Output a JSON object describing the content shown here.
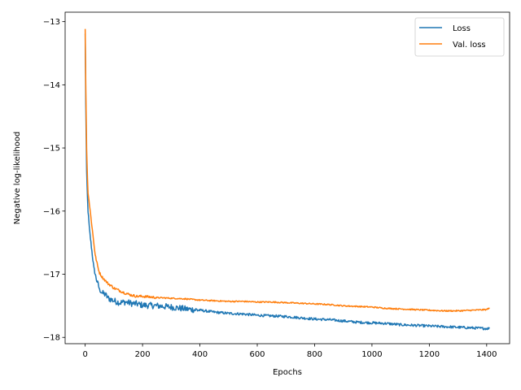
{
  "chart_data": {
    "type": "line",
    "title": "",
    "xlabel": "Epochs",
    "ylabel": "Negative log-likelihood",
    "xlim": [
      -70,
      1480
    ],
    "ylim": [
      -18.1,
      -12.85
    ],
    "xticks": [
      0,
      200,
      400,
      600,
      800,
      1000,
      1200,
      1400
    ],
    "xtick_labels": [
      "0",
      "200",
      "400",
      "600",
      "800",
      "1000",
      "1200",
      "1400"
    ],
    "yticks": [
      -13,
      -14,
      -15,
      -16,
      -17,
      -18
    ],
    "ytick_labels": [
      "−13",
      "−14",
      "−15",
      "−16",
      "−17",
      "−18"
    ],
    "grid": false,
    "legend_position": "top-right",
    "series": [
      {
        "name": "Loss",
        "color": "#1f77b4",
        "x": [
          0,
          2,
          5,
          8,
          10,
          15,
          20,
          25,
          30,
          35,
          40,
          45,
          50,
          60,
          70,
          80,
          90,
          100,
          120,
          140,
          160,
          180,
          200,
          250,
          300,
          350,
          400,
          450,
          500,
          550,
          600,
          650,
          700,
          750,
          800,
          850,
          900,
          950,
          1000,
          1050,
          1100,
          1150,
          1200,
          1250,
          1300,
          1350,
          1400,
          1410
        ],
        "y": [
          -13.2,
          -14.3,
          -15.4,
          -15.8,
          -16.0,
          -16.3,
          -16.5,
          -16.7,
          -16.9,
          -17.0,
          -17.1,
          -17.15,
          -17.25,
          -17.3,
          -17.32,
          -17.38,
          -17.4,
          -17.42,
          -17.45,
          -17.44,
          -17.46,
          -17.47,
          -17.49,
          -17.5,
          -17.52,
          -17.55,
          -17.57,
          -17.6,
          -17.62,
          -17.63,
          -17.65,
          -17.66,
          -17.67,
          -17.69,
          -17.71,
          -17.72,
          -17.74,
          -17.76,
          -17.77,
          -17.78,
          -17.8,
          -17.81,
          -17.82,
          -17.83,
          -17.84,
          -17.85,
          -17.86,
          -17.86
        ]
      },
      {
        "name": "Val. loss",
        "color": "#ff7f0e",
        "x": [
          0,
          2,
          5,
          8,
          10,
          15,
          20,
          25,
          30,
          35,
          40,
          45,
          50,
          60,
          70,
          80,
          90,
          100,
          120,
          140,
          160,
          180,
          200,
          250,
          300,
          350,
          400,
          450,
          500,
          550,
          600,
          650,
          700,
          750,
          800,
          850,
          900,
          950,
          1000,
          1050,
          1100,
          1150,
          1200,
          1250,
          1300,
          1350,
          1400,
          1410
        ],
        "y": [
          -13.1,
          -14.0,
          -15.0,
          -15.5,
          -15.7,
          -15.9,
          -16.1,
          -16.3,
          -16.5,
          -16.7,
          -16.8,
          -16.9,
          -16.98,
          -17.05,
          -17.1,
          -17.15,
          -17.18,
          -17.22,
          -17.26,
          -17.3,
          -17.33,
          -17.35,
          -17.35,
          -17.37,
          -17.38,
          -17.39,
          -17.41,
          -17.42,
          -17.43,
          -17.43,
          -17.44,
          -17.44,
          -17.45,
          -17.46,
          -17.47,
          -17.48,
          -17.5,
          -17.51,
          -17.52,
          -17.54,
          -17.55,
          -17.56,
          -17.57,
          -17.58,
          -17.58,
          -17.57,
          -17.56,
          -17.53
        ]
      }
    ]
  }
}
